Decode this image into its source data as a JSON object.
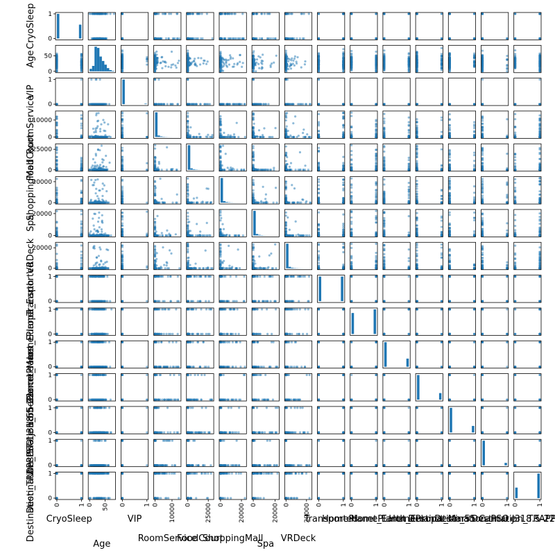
{
  "chart_data": {
    "type": "scatter_matrix",
    "variables": [
      "CryoSleep",
      "Age",
      "VIP",
      "RoomService",
      "FoodCourt",
      "ShoppingMall",
      "Spa",
      "VRDeck",
      "Transported",
      "HomePlanet_Earth",
      "HomePlanet_Europa",
      "HomePlanet_Mars",
      "Destination_55 Cancri e",
      "Destination_PSO J318.5-22",
      "Destination_TRAPPIST-1e"
    ],
    "column_labels": [
      "CryoSleep",
      "Age",
      "VIP",
      "RoomService",
      "FoodCourt",
      "ShoppingMall",
      "Spa",
      "VRDeck",
      "Transported",
      "HomePlanet_Earth",
      "HomePlanet_Europa",
      "HomePlanet_Mars",
      "Destination_55 Cancri e",
      "Destination_PSO J318.5-22",
      "Destination_TRAPPIST-1e"
    ],
    "row_labels": [
      "CryoSleep",
      "Age",
      "VIP",
      "RoomService",
      "FoodCourt",
      "ShoppingMall",
      "Spa",
      "VRDeck",
      "Transported",
      "HomePlanet_Earth",
      "HomePlanet_Europa",
      "HomePlanet_Mars",
      "Destination_55 Cancri e",
      "Destination_PSO J318.5-22",
      "Destination_TRAPPIST-1e"
    ],
    "x_tick_labels": [
      [
        "0",
        "1"
      ],
      [
        "0",
        "50"
      ],
      [
        "0",
        "1"
      ],
      [
        "0",
        "10000"
      ],
      [
        "0",
        "25000"
      ],
      [
        "0",
        "20000"
      ],
      [
        "0",
        "20000"
      ],
      [
        "0",
        "20000"
      ],
      [
        "0",
        "1"
      ],
      [
        "0",
        "1"
      ],
      [
        "0",
        "1"
      ],
      [
        "0",
        "1"
      ],
      [
        "0",
        "1"
      ],
      [
        "0",
        "1"
      ],
      [
        "0",
        "1"
      ]
    ],
    "y_tick_labels": [
      [
        "0",
        "1"
      ],
      [
        "0",
        "50"
      ],
      [
        "0",
        "1"
      ],
      [
        "0",
        "10000"
      ],
      [
        "0",
        "25000"
      ],
      [
        "0",
        "20000"
      ],
      [
        "0",
        "20000"
      ],
      [
        "0",
        "20000"
      ],
      [
        "0",
        "1"
      ],
      [
        "0",
        "1"
      ],
      [
        "0",
        "1"
      ],
      [
        "0",
        "1"
      ],
      [
        "0",
        "1"
      ],
      [
        "0",
        "1"
      ],
      [
        "0",
        "1"
      ]
    ],
    "ranges": {
      "binary": [
        0,
        1
      ],
      "Age": [
        0,
        79
      ],
      "RoomService": [
        0,
        14500
      ],
      "FoodCourt": [
        0,
        30000
      ],
      "ShoppingMall": [
        0,
        23500
      ],
      "Spa": [
        0,
        22500
      ],
      "VRDeck": [
        0,
        24000
      ]
    },
    "binary_proportions": {
      "CryoSleep": 0.36,
      "VIP": 0.02,
      "Transported": 0.5,
      "HomePlanet_Earth": 0.54,
      "HomePlanet_Europa": 0.25,
      "HomePlanet_Mars": 0.21,
      "Destination_55 Cancri e": 0.21,
      "Destination_PSO J318.5-22": 0.09,
      "Destination_TRAPPIST-1e": 0.7
    },
    "age_histogram": {
      "bin_edges": [
        0,
        8,
        16,
        24,
        32,
        40,
        48,
        56,
        64,
        72,
        80
      ],
      "relative_heights": [
        0.1,
        0.22,
        1.0,
        0.95,
        0.6,
        0.42,
        0.27,
        0.13,
        0.05,
        0.02
      ]
    },
    "spend_histogram_relative_heights": [
      1.0,
      0.06,
      0.025,
      0.012,
      0.006,
      0.003,
      0.002,
      0.001,
      0.001,
      0.001
    ],
    "marker_color": "#1f77b4",
    "marker_alpha": 0.5,
    "grid": false,
    "legend": "none"
  }
}
